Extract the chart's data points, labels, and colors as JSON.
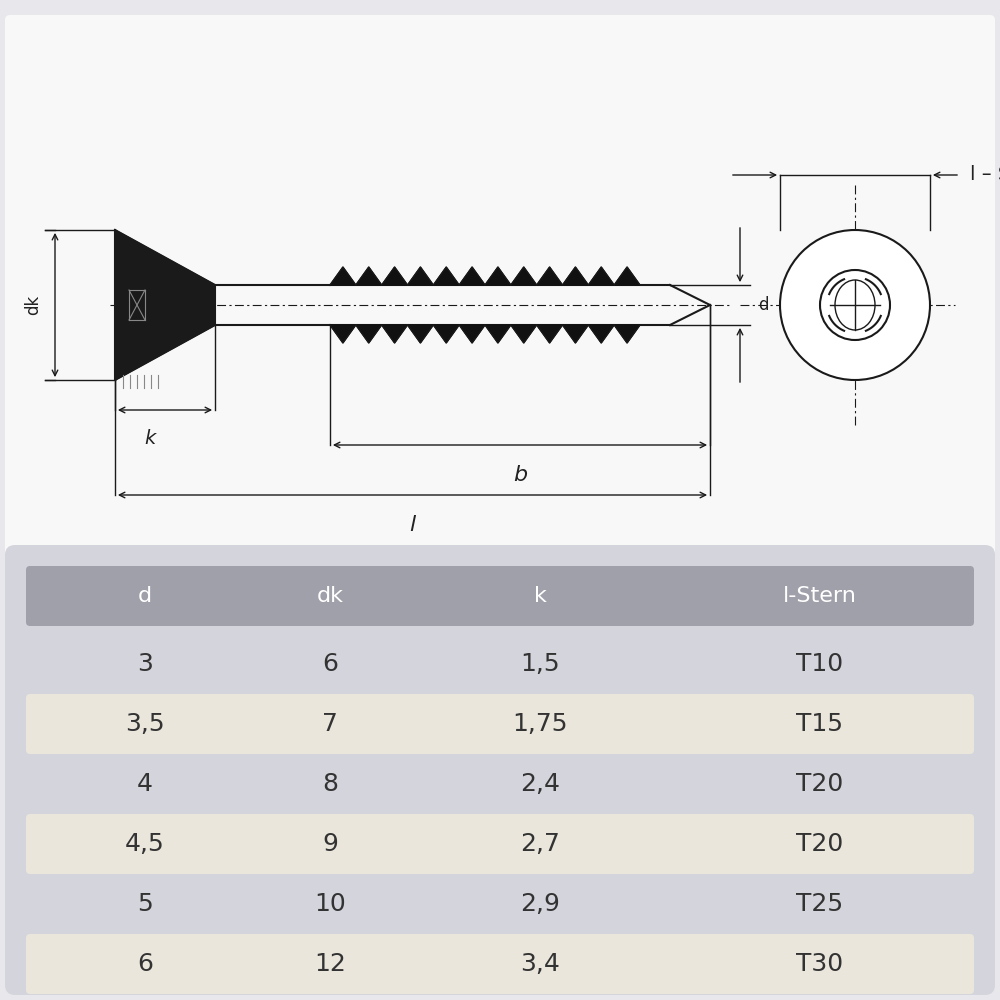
{
  "bg_color": "#e8e8ec",
  "upper_bg": "#f8f8f8",
  "table_bg": "#d8d8e0",
  "header_bg": "#a0a0aa",
  "row_alt_bg": "#eae6dc",
  "row_plain_bg": "#f8f8f8",
  "header_text_color": "#ffffff",
  "cell_text_color": "#333333",
  "header_labels": [
    "d",
    "dk",
    "k",
    "l-Stern"
  ],
  "rows": [
    [
      "3",
      "6",
      "1,5",
      "T10"
    ],
    [
      "3,5",
      "7",
      "1,75",
      "T15"
    ],
    [
      "4",
      "8",
      "2,4",
      "T20"
    ],
    [
      "4,5",
      "9",
      "2,7",
      "T20"
    ],
    [
      "5",
      "10",
      "2,9",
      "T25"
    ],
    [
      "6",
      "12",
      "3,4",
      "T30"
    ]
  ],
  "drawing_line_color": "#1a1a1a",
  "annotation_color": "#222222"
}
